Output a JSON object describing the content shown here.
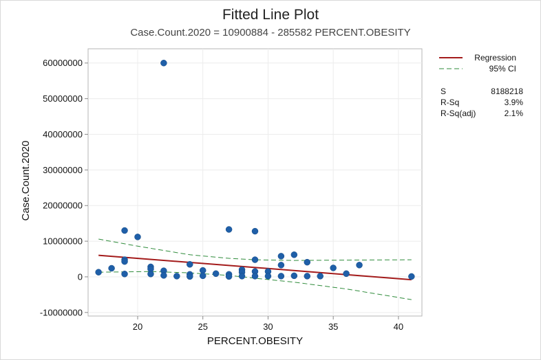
{
  "chart_data": {
    "type": "scatter",
    "title": "Fitted Line Plot",
    "subtitle": "Case.Count.2020 = 10900884 - 285582 PERCENT.OBESITY",
    "xlabel": "PERCENT.OBESITY",
    "ylabel": "Case.Count.2020",
    "xlim": [
      16.2,
      41.8
    ],
    "ylim": [
      -11000000,
      64000000
    ],
    "xticks": [
      20,
      25,
      30,
      35,
      40
    ],
    "yticks": [
      -10000000,
      0,
      10000000,
      20000000,
      30000000,
      40000000,
      50000000,
      60000000
    ],
    "ytick_labels": [
      "-10000000",
      "0",
      "10000000",
      "20000000",
      "30000000",
      "40000000",
      "50000000",
      "60000000"
    ],
    "grid": true,
    "legend_position": "top-right",
    "points": [
      [
        17,
        1300000
      ],
      [
        18,
        2400000
      ],
      [
        19,
        13000000
      ],
      [
        19,
        4800000
      ],
      [
        19,
        4300000
      ],
      [
        19,
        800000
      ],
      [
        20,
        11200000
      ],
      [
        21,
        2800000
      ],
      [
        21,
        2200000
      ],
      [
        21,
        800000
      ],
      [
        22,
        60000000
      ],
      [
        22,
        1700000
      ],
      [
        22,
        400000
      ],
      [
        23,
        200000
      ],
      [
        24,
        3500000
      ],
      [
        24,
        700000
      ],
      [
        24,
        100000
      ],
      [
        25,
        1800000
      ],
      [
        25,
        300000
      ],
      [
        26,
        900000
      ],
      [
        27,
        13300000
      ],
      [
        27,
        700000
      ],
      [
        27,
        100000
      ],
      [
        28,
        2000000
      ],
      [
        28,
        1300000
      ],
      [
        28,
        200000
      ],
      [
        29,
        12800000
      ],
      [
        29,
        4800000
      ],
      [
        29,
        1500000
      ],
      [
        29,
        200000
      ],
      [
        30,
        1500000
      ],
      [
        30,
        200000
      ],
      [
        31,
        5800000
      ],
      [
        31,
        3300000
      ],
      [
        31,
        200000
      ],
      [
        32,
        6200000
      ],
      [
        32,
        300000
      ],
      [
        33,
        4100000
      ],
      [
        33,
        200000
      ],
      [
        34,
        200000
      ],
      [
        35,
        2500000
      ],
      [
        36,
        900000
      ],
      [
        37,
        3300000
      ],
      [
        41,
        100000
      ]
    ],
    "regression": {
      "intercept": 10900884,
      "slope": -285582,
      "x_range": [
        17,
        41
      ]
    },
    "ci_upper": [
      [
        17,
        10600000
      ],
      [
        20,
        8600000
      ],
      [
        24,
        6200000
      ],
      [
        27,
        5200000
      ],
      [
        29,
        4800000
      ],
      [
        32,
        4600000
      ],
      [
        36,
        4700000
      ],
      [
        41,
        4800000
      ]
    ],
    "ci_lower": [
      [
        17,
        1300000
      ],
      [
        21,
        1500000
      ],
      [
        24,
        1100000
      ],
      [
        27,
        400000
      ],
      [
        29,
        -400000
      ],
      [
        32,
        -1500000
      ],
      [
        36,
        -3400000
      ],
      [
        41,
        -6400000
      ]
    ],
    "legend": {
      "regression_label": "Regression",
      "ci_label": "95% CI",
      "regression_color": "#a31a1a",
      "ci_color": "#2e8b3a"
    },
    "stats": [
      {
        "label": "S",
        "value": "8188218"
      },
      {
        "label": "R-Sq",
        "value": "3.9%"
      },
      {
        "label": "R-Sq(adj)",
        "value": "2.1%"
      }
    ],
    "point_color": "#1f5fa8"
  }
}
